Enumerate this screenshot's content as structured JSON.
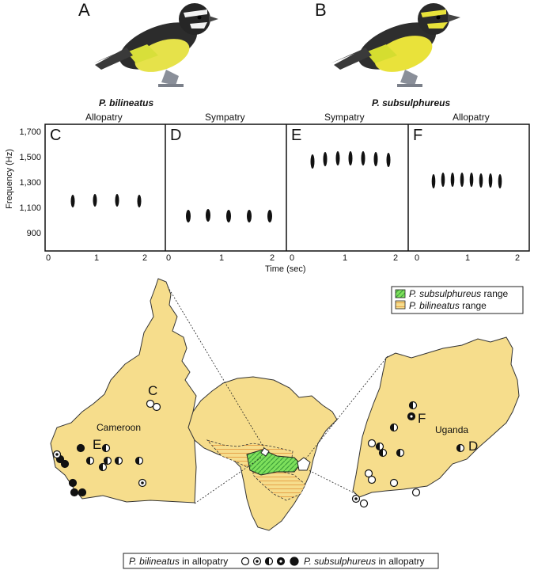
{
  "birds": {
    "a": {
      "letter": "A"
    },
    "b": {
      "letter": "B"
    }
  },
  "species_top": {
    "left": "P. bilineatus",
    "right": "P. subsulphureus"
  },
  "conditions": [
    "Allopatry",
    "Sympatry",
    "Sympatry",
    "Allopatry"
  ],
  "sonograms": {
    "panels": [
      {
        "letter": "C"
      },
      {
        "letter": "D"
      },
      {
        "letter": "E"
      },
      {
        "letter": "F"
      }
    ],
    "y_title": "Frequency (Hz)",
    "y_ticks": [
      "1,700",
      "1,500",
      "1,300",
      "1,100",
      "900"
    ],
    "x_title": "Time (sec)",
    "x_ticks_left": [
      "0",
      "1",
      "2"
    ],
    "x_ticks_mid": [
      "0",
      "1",
      "2"
    ],
    "x_ticks_right": [
      "0",
      "1",
      "2"
    ]
  },
  "map_legend": {
    "subsulphureus": "P. subsulphureus range",
    "bilineatus": "P. bilineatus range"
  },
  "map_labels": {
    "cameroon": "Cameroon",
    "uganda": "Uganda",
    "c": "C",
    "d": "D",
    "e": "E",
    "f": "F"
  },
  "bottom_legend": {
    "left": "P. bilineatus in allopatry",
    "right": "P. subsulphureus in allopatry"
  },
  "colors": {
    "land": "#f6dd8c",
    "subsulphureus_range": "#6fdc5a",
    "bilineatus_range": "#e8a650"
  }
}
